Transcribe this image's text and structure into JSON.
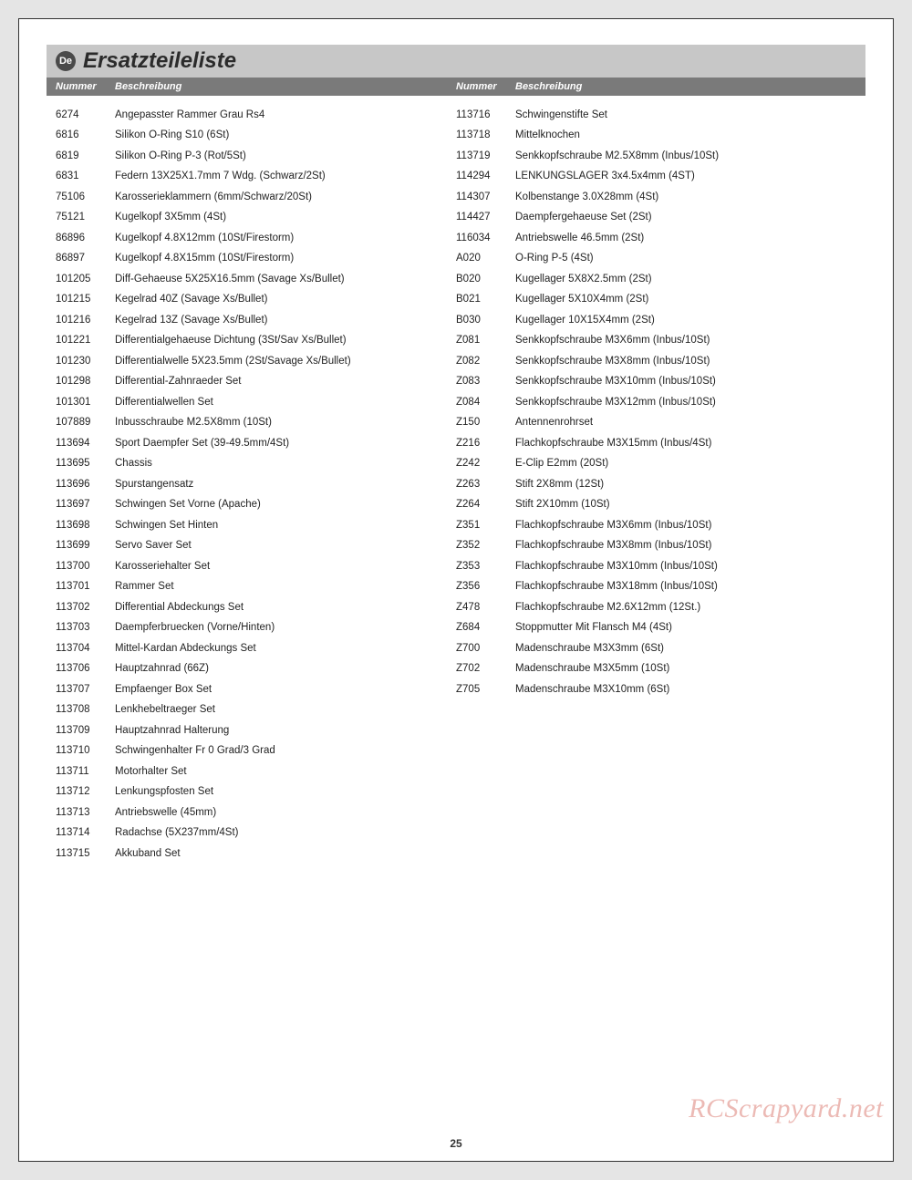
{
  "title": {
    "badge": "De",
    "text": "Ersatzteileliste"
  },
  "header": {
    "num": "Nummer",
    "desc": "Beschreibung"
  },
  "page_number": "25",
  "watermark": "RCScrapyard.net",
  "left_column": [
    {
      "num": "6274",
      "desc": "Angepasster Rammer Grau Rs4"
    },
    {
      "num": "6816",
      "desc": "Silikon O-Ring S10 (6St)"
    },
    {
      "num": "6819",
      "desc": "Silikon O-Ring P-3 (Rot/5St)"
    },
    {
      "num": "6831",
      "desc": "Federn 13X25X1.7mm 7 Wdg. (Schwarz/2St)"
    },
    {
      "num": "75106",
      "desc": "Karosserieklammern (6mm/Schwarz/20St)"
    },
    {
      "num": "75121",
      "desc": "Kugelkopf 3X5mm (4St)"
    },
    {
      "num": "86896",
      "desc": "Kugelkopf 4.8X12mm (10St/Firestorm)"
    },
    {
      "num": "86897",
      "desc": "Kugelkopf 4.8X15mm (10St/Firestorm)"
    },
    {
      "num": "101205",
      "desc": "Diff-Gehaeuse 5X25X16.5mm (Savage Xs/Bullet)"
    },
    {
      "num": "101215",
      "desc": "Kegelrad 40Z (Savage Xs/Bullet)"
    },
    {
      "num": "101216",
      "desc": "Kegelrad 13Z (Savage Xs/Bullet)"
    },
    {
      "num": "101221",
      "desc": "Differentialgehaeuse Dichtung (3St/Sav Xs/Bullet)"
    },
    {
      "num": "101230",
      "desc": "Differentialwelle 5X23.5mm (2St/Savage Xs/Bullet)"
    },
    {
      "num": "101298",
      "desc": "Differential-Zahnraeder Set"
    },
    {
      "num": "101301",
      "desc": "Differentialwellen Set"
    },
    {
      "num": "107889",
      "desc": "Inbusschraube M2.5X8mm (10St)"
    },
    {
      "num": "113694",
      "desc": "Sport Daempfer Set (39-49.5mm/4St)"
    },
    {
      "num": "113695",
      "desc": "Chassis"
    },
    {
      "num": "113696",
      "desc": "Spurstangensatz"
    },
    {
      "num": "113697",
      "desc": "Schwingen Set Vorne (Apache)"
    },
    {
      "num": "113698",
      "desc": "Schwingen Set Hinten"
    },
    {
      "num": "113699",
      "desc": "Servo Saver Set"
    },
    {
      "num": "113700",
      "desc": "Karosseriehalter Set"
    },
    {
      "num": "113701",
      "desc": "Rammer Set"
    },
    {
      "num": "113702",
      "desc": "Differential Abdeckungs Set"
    },
    {
      "num": "113703",
      "desc": "Daempferbruecken (Vorne/Hinten)"
    },
    {
      "num": "113704",
      "desc": "Mittel-Kardan Abdeckungs Set"
    },
    {
      "num": "113706",
      "desc": "Hauptzahnrad (66Z)"
    },
    {
      "num": "113707",
      "desc": "Empfaenger Box Set"
    },
    {
      "num": "113708",
      "desc": "Lenkhebeltraeger Set"
    },
    {
      "num": "113709",
      "desc": "Hauptzahnrad Halterung"
    },
    {
      "num": "113710",
      "desc": "Schwingenhalter Fr 0 Grad/3 Grad"
    },
    {
      "num": "113711",
      "desc": "Motorhalter Set"
    },
    {
      "num": "113712",
      "desc": "Lenkungspfosten Set"
    },
    {
      "num": "113713",
      "desc": "Antriebswelle (45mm)"
    },
    {
      "num": "113714",
      "desc": "Radachse (5X237mm/4St)"
    },
    {
      "num": "113715",
      "desc": "Akkuband Set"
    }
  ],
  "right_column": [
    {
      "num": "113716",
      "desc": "Schwingenstifte Set"
    },
    {
      "num": "113718",
      "desc": "Mittelknochen"
    },
    {
      "num": "113719",
      "desc": "Senkkopfschraube M2.5X8mm (Inbus/10St)"
    },
    {
      "num": "114294",
      "desc": "LENKUNGSLAGER 3x4.5x4mm (4ST)"
    },
    {
      "num": "114307",
      "desc": "Kolbenstange 3.0X28mm (4St)"
    },
    {
      "num": "114427",
      "desc": "Daempfergehaeuse Set (2St)"
    },
    {
      "num": "116034",
      "desc": "Antriebswelle 46.5mm (2St)"
    },
    {
      "num": "A020",
      "desc": "O-Ring P-5 (4St)"
    },
    {
      "num": "B020",
      "desc": "Kugellager 5X8X2.5mm (2St)"
    },
    {
      "num": "B021",
      "desc": "Kugellager 5X10X4mm (2St)"
    },
    {
      "num": "B030",
      "desc": "Kugellager 10X15X4mm (2St)"
    },
    {
      "num": "Z081",
      "desc": "Senkkopfschraube M3X6mm (Inbus/10St)"
    },
    {
      "num": "Z082",
      "desc": "Senkkopfschraube M3X8mm (Inbus/10St)"
    },
    {
      "num": "Z083",
      "desc": "Senkkopfschraube M3X10mm (Inbus/10St)"
    },
    {
      "num": "Z084",
      "desc": "Senkkopfschraube M3X12mm (Inbus/10St)"
    },
    {
      "num": "Z150",
      "desc": "Antennenrohrset"
    },
    {
      "num": "Z216",
      "desc": "Flachkopfschraube M3X15mm (Inbus/4St)"
    },
    {
      "num": "Z242",
      "desc": "E-Clip E2mm (20St)"
    },
    {
      "num": "Z263",
      "desc": "Stift 2X8mm (12St)"
    },
    {
      "num": "Z264",
      "desc": "Stift 2X10mm (10St)"
    },
    {
      "num": "Z351",
      "desc": "Flachkopfschraube M3X6mm (Inbus/10St)"
    },
    {
      "num": "Z352",
      "desc": "Flachkopfschraube M3X8mm (Inbus/10St)"
    },
    {
      "num": "Z353",
      "desc": "Flachkopfschraube M3X10mm (Inbus/10St)"
    },
    {
      "num": "Z356",
      "desc": "Flachkopfschraube M3X18mm (Inbus/10St)"
    },
    {
      "num": "Z478",
      "desc": "Flachkopfschraube M2.6X12mm (12St.)"
    },
    {
      "num": "Z684",
      "desc": "Stoppmutter Mit Flansch M4 (4St)"
    },
    {
      "num": "Z700",
      "desc": "Madenschraube M3X3mm (6St)"
    },
    {
      "num": "Z702",
      "desc": "Madenschraube M3X5mm (10St)"
    },
    {
      "num": "Z705",
      "desc": "Madenschraube M3X10mm (6St)"
    }
  ]
}
